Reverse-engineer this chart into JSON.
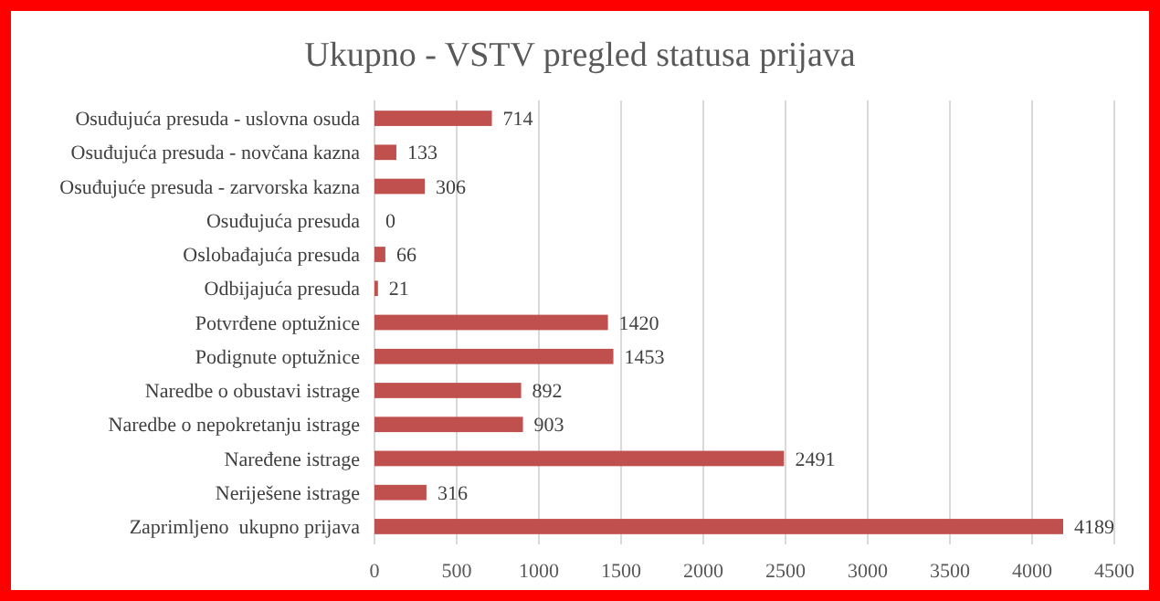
{
  "chart_data": {
    "type": "bar",
    "orientation": "horizontal",
    "title": "Ukupno - VSTV pregled statusa prijava",
    "categories": [
      "Osuđujuća presuda - uslovna osuda",
      "Osuđujuća presuda - novčana kazna",
      "Osuđujuće presuda - zarvorska kazna",
      "Osuđujuća presuda",
      "Oslobađajuća presuda",
      "Odbijajuća presuda",
      "Potvrđene optužnice",
      "Podignute optužnice",
      "Naredbe o obustavi istrage",
      "Naredbe o nepokretanju istrage",
      "Naređene istrage",
      "Neriješene istrage",
      "Zaprimljeno  ukupno prijava"
    ],
    "values": [
      714,
      133,
      306,
      0,
      66,
      21,
      1420,
      1453,
      892,
      903,
      2491,
      316,
      4189
    ],
    "color": "#c0504d",
    "xlim": [
      0,
      4500
    ],
    "xticks": [
      0,
      500,
      1000,
      1500,
      2000,
      2500,
      3000,
      3500,
      4000,
      4500
    ],
    "grid": "x",
    "data_labels": true
  }
}
